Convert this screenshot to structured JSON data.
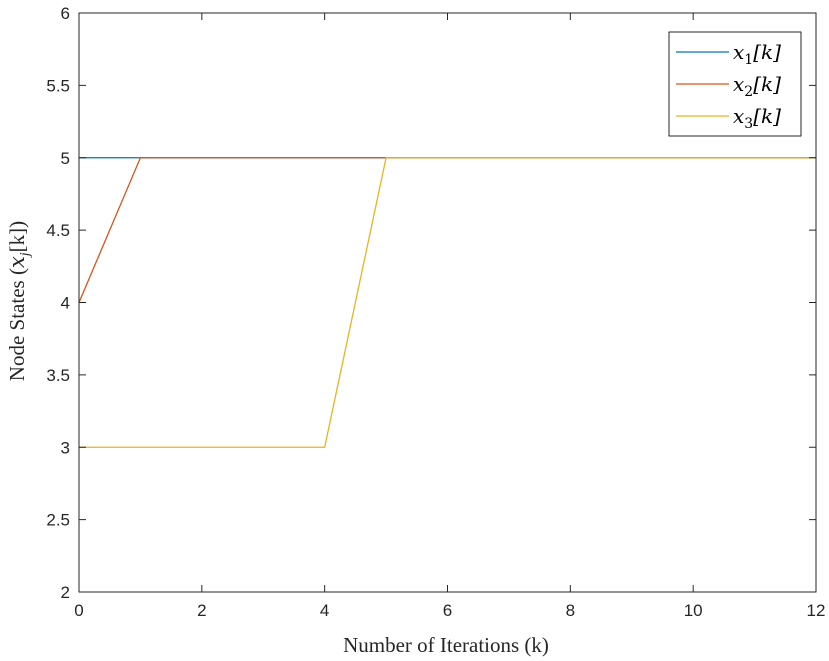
{
  "chart_data": {
    "type": "line",
    "title": "",
    "xlabel": "Number of Iterations (k)",
    "ylabel": "Node States (x_j[k])",
    "ylabel_parts": {
      "prefix": "Node States (",
      "var": "x",
      "var_sub": "j",
      "bracket": "[k]",
      "suffix": ")"
    },
    "xlim": [
      0,
      12
    ],
    "ylim": [
      2,
      6
    ],
    "xticks": [
      0,
      2,
      4,
      6,
      8,
      10,
      12
    ],
    "yticks": [
      2,
      2.5,
      3,
      3.5,
      4,
      4.5,
      5,
      5.5,
      6
    ],
    "xtick_labels": [
      "0",
      "2",
      "4",
      "6",
      "8",
      "10",
      "12"
    ],
    "ytick_labels": [
      "2",
      "2.5",
      "3",
      "3.5",
      "4",
      "4.5",
      "5",
      "5.5",
      "6"
    ],
    "grid": false,
    "legend_position": "top-right",
    "series": [
      {
        "name": "x1[k]",
        "legend_var": "x",
        "legend_sub": "1",
        "legend_bracket": "[k]",
        "color": "#0072BD",
        "x": [
          0,
          1,
          2,
          3,
          4,
          5,
          6,
          7,
          8,
          9,
          10,
          11,
          12
        ],
        "y": [
          5,
          5,
          5,
          5,
          5,
          5,
          5,
          5,
          5,
          5,
          5,
          5,
          5
        ]
      },
      {
        "name": "x2[k]",
        "legend_var": "x",
        "legend_sub": "2",
        "legend_bracket": "[k]",
        "color": "#D95319",
        "x": [
          0,
          1,
          2,
          3,
          4,
          5,
          6,
          7,
          8,
          9,
          10,
          11,
          12
        ],
        "y": [
          4,
          5,
          5,
          5,
          5,
          5,
          5,
          5,
          5,
          5,
          5,
          5,
          5
        ]
      },
      {
        "name": "x3[k]",
        "legend_var": "x",
        "legend_sub": "3",
        "legend_bracket": "[k]",
        "color": "#EDB120",
        "x": [
          0,
          1,
          2,
          3,
          4,
          5,
          6,
          7,
          8,
          9,
          10,
          11,
          12
        ],
        "y": [
          3,
          3,
          3,
          3,
          3,
          5,
          5,
          5,
          5,
          5,
          5,
          5,
          5
        ]
      }
    ]
  }
}
